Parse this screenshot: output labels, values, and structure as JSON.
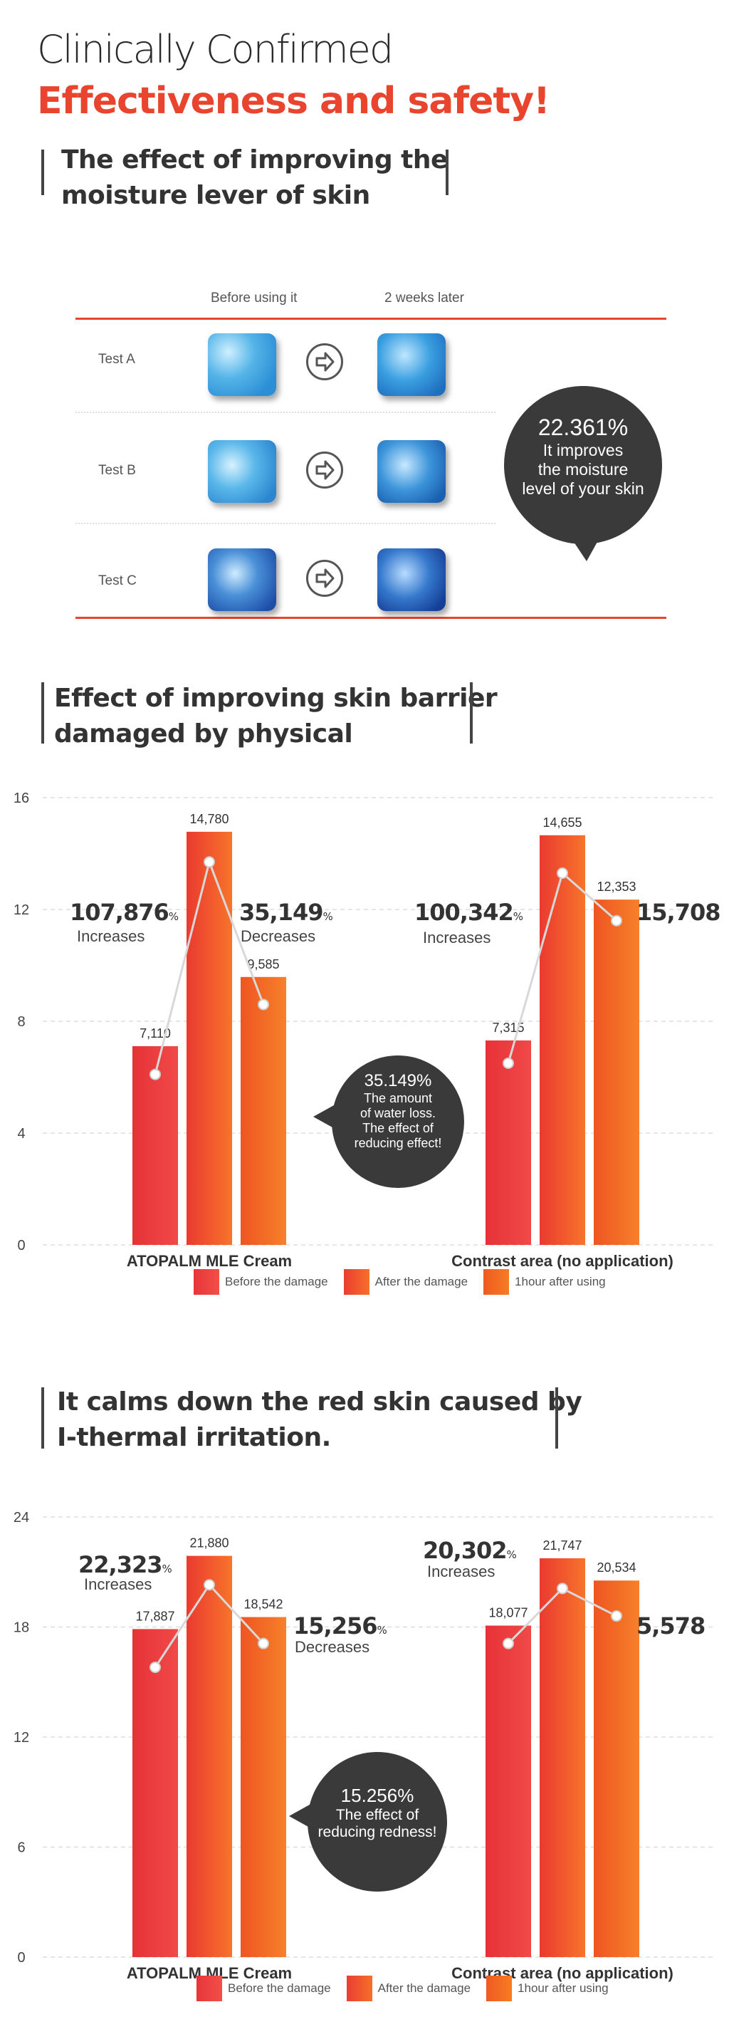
{
  "header": {
    "line1": "Clinically Confirmed",
    "line2": "Effectiveness and safety!"
  },
  "section1": {
    "title_line1": "The effect of improving the",
    "title_line2": "moisture lever of skin",
    "col_before": "Before using it",
    "col_after": "2 weeks later",
    "tests": [
      "Test A",
      "Test B",
      "Test C"
    ],
    "bubble_pct": "22.361%",
    "bubble_lines": [
      "It improves",
      "the moisture",
      "level of your skin"
    ]
  },
  "section2": {
    "title_line1": "Effect of improving skin barrier",
    "title_line2": "damaged by physical",
    "left_pct": "107,876",
    "left_pct_unit": "%",
    "left_label": "Increases",
    "mid_pct": "35,149",
    "mid_pct_unit": "%",
    "mid_label": "Decreases",
    "right_pct": "100,342",
    "right_pct_unit": "%",
    "right_label": "Increases",
    "right_value": "15,708",
    "bubble_pct": "35.149%",
    "bubble_lines": [
      "The amount",
      "of water loss.",
      "The effect of",
      "reducing effect!"
    ]
  },
  "section3": {
    "title_line1": "It calms down the red skin caused by",
    "title_line2": "I-thermal irritation.",
    "left_pct": "22,323",
    "left_pct_unit": "%",
    "left_label": "Increases",
    "mid_pct": "15,256",
    "mid_pct_unit": "%",
    "mid_label": "Decreases",
    "right_pct": "20,302",
    "right_pct_unit": "%",
    "right_label": "Increases",
    "right_value": "5,578",
    "bubble_pct": "15.256%",
    "bubble_lines": [
      "The effect of",
      "reducing redness!"
    ]
  },
  "colors": {
    "accent_red": "#e8442e",
    "bar_before": "#ee3b3b",
    "bar_after": "#f4561f",
    "bar_1hour": "#f26a1b",
    "bubble": "#3a3a3a"
  },
  "chart_data": [
    {
      "type": "bar",
      "categories": [
        "ATOPALM MLE Cream",
        "Contrast area (no application)"
      ],
      "series": [
        {
          "name": "Before the damage",
          "values": [
            7.11,
            7.315
          ],
          "labels": [
            "7,110",
            "7,315"
          ]
        },
        {
          "name": "After the damage",
          "values": [
            14.78,
            14.655
          ],
          "labels": [
            "14,780",
            "14,655"
          ]
        },
        {
          "name": "1hour after using",
          "values": [
            9.585,
            12.353
          ],
          "labels": [
            "9,585",
            "12,353"
          ]
        }
      ],
      "line_markers": [
        [
          6.1,
          13.7,
          8.6
        ],
        [
          6.5,
          13.3,
          11.6
        ]
      ],
      "ylim": [
        0,
        16
      ],
      "yticks": [
        "0",
        "4",
        "8",
        "12",
        "16"
      ],
      "grid": true,
      "legend": "bottom"
    },
    {
      "type": "bar",
      "categories": [
        "ATOPALM MLE Cream",
        "Contrast area (no application)"
      ],
      "series": [
        {
          "name": "Before the damage",
          "values": [
            17.887,
            18.077
          ],
          "labels": [
            "17,887",
            "18,077"
          ]
        },
        {
          "name": "After the damage",
          "values": [
            21.88,
            21.747
          ],
          "labels": [
            "21,880",
            "21,747"
          ]
        },
        {
          "name": "1hour after using",
          "values": [
            18.542,
            20.534
          ],
          "labels": [
            "18,542",
            "20,534"
          ]
        }
      ],
      "line_markers": [
        [
          15.8,
          20.3,
          17.1
        ],
        [
          17.1,
          20.1,
          18.6
        ]
      ],
      "ylim": [
        0,
        24
      ],
      "yticks": [
        "0",
        "6",
        "12",
        "18",
        "24"
      ],
      "grid": true,
      "legend": "bottom"
    }
  ]
}
